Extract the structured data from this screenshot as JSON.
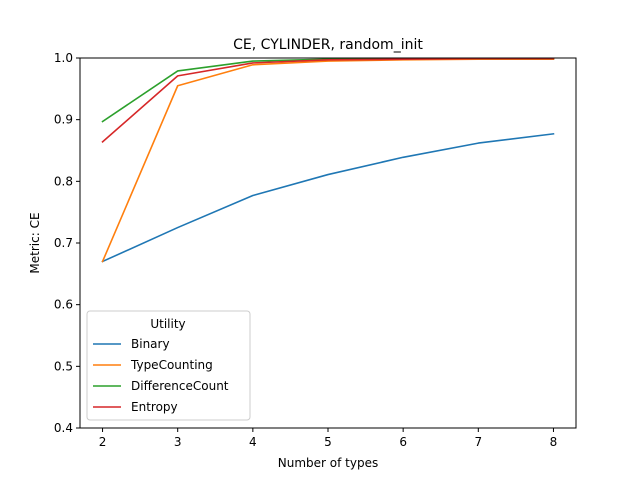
{
  "chart_data": {
    "type": "line",
    "title": "CE, CYLINDER, random_init",
    "xlabel": "Number of types",
    "ylabel": "Metric: CE",
    "x": [
      2,
      3,
      4,
      5,
      6,
      7,
      8
    ],
    "xlim": [
      1.7,
      8.3
    ],
    "ylim": [
      0.4,
      1.0
    ],
    "xticks": [
      "2",
      "3",
      "4",
      "5",
      "6",
      "7",
      "8"
    ],
    "yticks": [
      "0.4",
      "0.5",
      "0.6",
      "0.7",
      "0.8",
      "0.9",
      "1.0"
    ],
    "grid": false,
    "legend": {
      "title": "Utility",
      "placement": "lower-left"
    },
    "series": [
      {
        "name": "Binary",
        "color": "#1f77b4",
        "values": [
          0.67,
          0.725,
          0.777,
          0.811,
          0.839,
          0.862,
          0.877
        ]
      },
      {
        "name": "TypeCounting",
        "color": "#ff7f0e",
        "values": [
          0.67,
          0.955,
          0.989,
          0.995,
          0.997,
          0.998,
          0.998
        ]
      },
      {
        "name": "DifferenceCount",
        "color": "#2ca02c",
        "values": [
          0.897,
          0.979,
          0.995,
          0.998,
          0.999,
          0.999,
          0.999
        ]
      },
      {
        "name": "Entropy",
        "color": "#d62728",
        "values": [
          0.864,
          0.971,
          0.992,
          0.997,
          0.998,
          0.999,
          0.999
        ]
      }
    ]
  }
}
